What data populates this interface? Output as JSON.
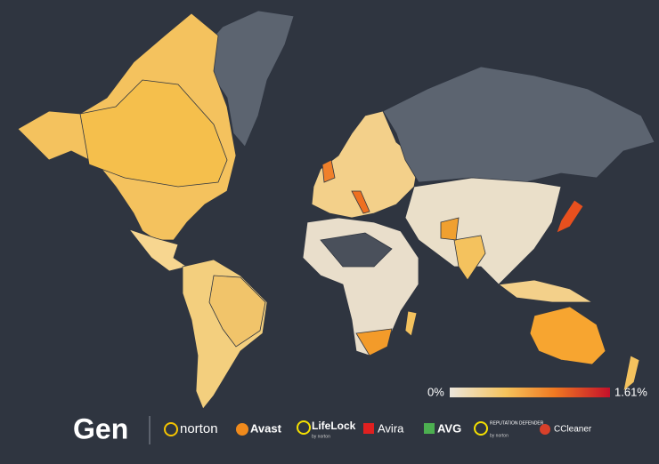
{
  "legend": {
    "min_label": "0%",
    "max_label": "1.61%"
  },
  "footer": {
    "brand": "Gen",
    "logos": [
      {
        "name": "norton"
      },
      {
        "name": "Avast"
      },
      {
        "name": "LifeLock",
        "note": "by norton"
      },
      {
        "name": "Avira"
      },
      {
        "name": "AVG"
      },
      {
        "name": "REPUTATION DEFENDER",
        "note": "by norton"
      },
      {
        "name": "CCleaner"
      }
    ]
  }
}
